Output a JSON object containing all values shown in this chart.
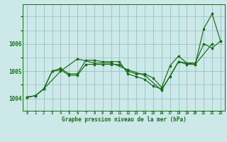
{
  "background_color": "#cce8e8",
  "grid_color": "#88bbbb",
  "line_color": "#1a6b1a",
  "ylabel_ticks": [
    1004,
    1005,
    1006
  ],
  "xlabel_ticks": [
    0,
    1,
    2,
    3,
    4,
    5,
    6,
    7,
    8,
    9,
    10,
    11,
    12,
    13,
    14,
    15,
    16,
    17,
    18,
    19,
    20,
    21,
    22,
    23
  ],
  "xlabel_label": "Graphe pression niveau de la mer (hPa)",
  "xlim": [
    -0.5,
    23.5
  ],
  "ylim": [
    1003.55,
    1007.45
  ],
  "line1": {
    "x": [
      0,
      1,
      2,
      3,
      4,
      5,
      6,
      7,
      8,
      9,
      10,
      11,
      12,
      13,
      14,
      15,
      16,
      17,
      18,
      19,
      20,
      21,
      22,
      23
    ],
    "y": [
      1004.05,
      1004.1,
      1004.35,
      1005.0,
      1005.05,
      1004.85,
      1004.85,
      1005.25,
      1005.25,
      1005.25,
      1005.25,
      1005.25,
      1005.0,
      1004.9,
      1004.9,
      1004.75,
      1004.4,
      1005.2,
      1005.55,
      1005.3,
      1005.3,
      1006.0,
      1005.85,
      1006.1
    ]
  },
  "line2": {
    "x": [
      0,
      1,
      2,
      3,
      4,
      5,
      6,
      7,
      8,
      9,
      10,
      11,
      12,
      13,
      14,
      15,
      16,
      17,
      18,
      19,
      20,
      21,
      22,
      23
    ],
    "y": [
      1004.05,
      1004.1,
      1004.35,
      1005.0,
      1005.1,
      1004.9,
      1004.9,
      1005.4,
      1005.4,
      1005.35,
      1005.35,
      1005.35,
      1004.9,
      1004.8,
      1004.7,
      1004.45,
      1004.35,
      1004.8,
      1005.35,
      1005.25,
      1005.25,
      1006.55,
      1007.1,
      1006.1
    ]
  },
  "line3": {
    "x": [
      0,
      1,
      2,
      4,
      6,
      8,
      10,
      12,
      14,
      16,
      18,
      20,
      22
    ],
    "y": [
      1004.05,
      1004.1,
      1004.35,
      1005.0,
      1005.45,
      1005.3,
      1005.3,
      1005.05,
      1004.85,
      1004.3,
      1005.35,
      1005.25,
      1006.0
    ]
  }
}
